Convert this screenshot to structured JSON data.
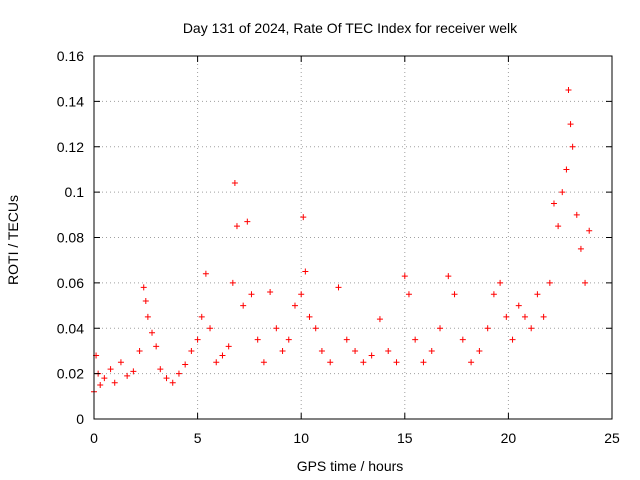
{
  "chart_data": {
    "type": "scatter",
    "title": "Day 131 of 2024, Rate Of TEC Index for receiver welk",
    "xlabel": "GPS time / hours",
    "ylabel": "ROTI / TECUs",
    "xlim": [
      0,
      25
    ],
    "ylim": [
      0,
      0.16
    ],
    "xticks": [
      0,
      5,
      10,
      15,
      20,
      25
    ],
    "xtick_labels": [
      "0",
      "5",
      "10",
      "15",
      "20",
      "25"
    ],
    "yticks": [
      0,
      0.02,
      0.04,
      0.06,
      0.08,
      0.1,
      0.12,
      0.14,
      0.16
    ],
    "ytick_labels": [
      "0",
      "0.02",
      "0.04",
      "0.06",
      "0.08",
      "0.1",
      "0.12",
      "0.14",
      "0.16"
    ],
    "grid": true,
    "marker": "+",
    "color": "#ff0000",
    "series": [
      {
        "name": "ROTI",
        "x": [
          0.0,
          0.1,
          0.2,
          0.3,
          0.5,
          0.8,
          1.0,
          1.3,
          1.6,
          1.9,
          2.2,
          2.4,
          2.5,
          2.6,
          2.8,
          3.0,
          3.2,
          3.5,
          3.8,
          4.1,
          4.4,
          4.7,
          5.0,
          5.2,
          5.4,
          5.6,
          5.9,
          6.2,
          6.5,
          6.7,
          6.8,
          6.9,
          7.2,
          7.4,
          7.6,
          7.9,
          8.2,
          8.5,
          8.8,
          9.1,
          9.4,
          9.7,
          10.0,
          10.1,
          10.2,
          10.4,
          10.7,
          11.0,
          11.4,
          11.8,
          12.2,
          12.6,
          13.0,
          13.4,
          13.8,
          14.2,
          14.6,
          15.0,
          15.2,
          15.5,
          15.9,
          16.3,
          16.7,
          17.1,
          17.4,
          17.8,
          18.2,
          18.6,
          19.0,
          19.3,
          19.6,
          19.9,
          20.2,
          20.5,
          20.8,
          21.1,
          21.4,
          21.7,
          22.0,
          22.2,
          22.4,
          22.6,
          22.8,
          22.9,
          23.0,
          23.1,
          23.3,
          23.5,
          23.7,
          23.9
        ],
        "y": [
          0.012,
          0.028,
          0.02,
          0.015,
          0.018,
          0.022,
          0.016,
          0.025,
          0.019,
          0.021,
          0.03,
          0.058,
          0.052,
          0.045,
          0.038,
          0.032,
          0.022,
          0.018,
          0.016,
          0.02,
          0.024,
          0.03,
          0.035,
          0.045,
          0.064,
          0.04,
          0.025,
          0.028,
          0.032,
          0.06,
          0.104,
          0.085,
          0.05,
          0.087,
          0.055,
          0.035,
          0.025,
          0.056,
          0.04,
          0.03,
          0.035,
          0.05,
          0.055,
          0.089,
          0.065,
          0.045,
          0.04,
          0.03,
          0.025,
          0.058,
          0.035,
          0.03,
          0.025,
          0.028,
          0.044,
          0.03,
          0.025,
          0.063,
          0.055,
          0.035,
          0.025,
          0.03,
          0.04,
          0.063,
          0.055,
          0.035,
          0.025,
          0.03,
          0.04,
          0.055,
          0.06,
          0.045,
          0.035,
          0.05,
          0.045,
          0.04,
          0.055,
          0.045,
          0.06,
          0.095,
          0.085,
          0.1,
          0.11,
          0.145,
          0.13,
          0.12,
          0.09,
          0.075,
          0.06,
          0.083
        ]
      }
    ]
  }
}
